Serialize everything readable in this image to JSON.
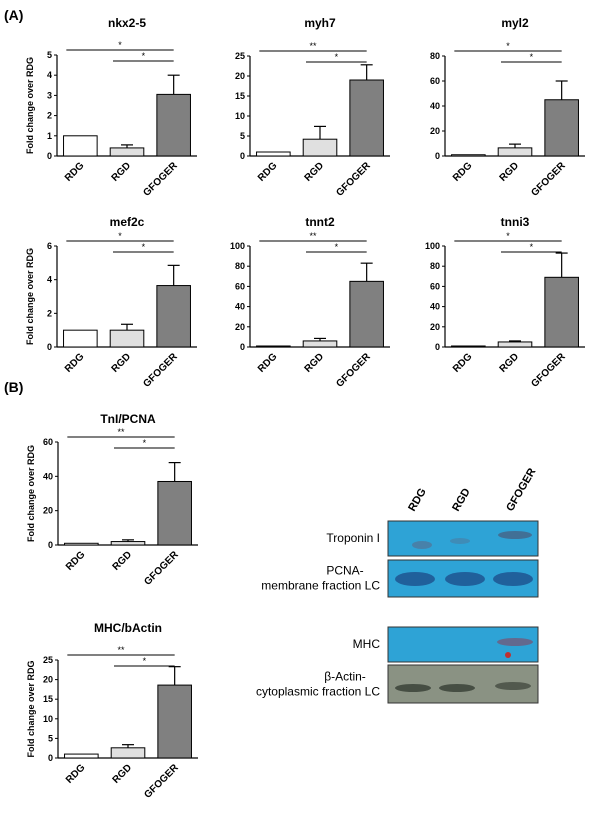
{
  "panels": [
    "(A)",
    "(B)"
  ],
  "chart_data": [
    {
      "type": "bar",
      "title": "nkx2-5",
      "ylabel": "Fold change over RDG",
      "categories": [
        "RDG",
        "RGD",
        "GFOGER"
      ],
      "values": [
        1,
        0.4,
        3.05
      ],
      "errors": [
        null,
        0.15,
        0.95
      ],
      "colors": [
        "#ffffff",
        "#e0e0e0",
        "#808080"
      ],
      "ylim": [
        0,
        5
      ],
      "yticks": [
        0,
        1,
        2,
        3,
        4,
        5
      ],
      "significance": [
        "*",
        "*"
      ]
    },
    {
      "type": "bar",
      "title": "myh7",
      "categories": [
        "RDG",
        "RGD",
        "GFOGER"
      ],
      "values": [
        1,
        4.2,
        19
      ],
      "errors": [
        null,
        3.2,
        3.8
      ],
      "colors": [
        "#ffffff",
        "#e0e0e0",
        "#808080"
      ],
      "ylim": [
        0,
        25
      ],
      "yticks": [
        0,
        5,
        10,
        15,
        20,
        25
      ],
      "significance": [
        "**",
        "*"
      ]
    },
    {
      "type": "bar",
      "title": "myl2",
      "categories": [
        "RDG",
        "RGD",
        "GFOGER"
      ],
      "values": [
        1,
        6.5,
        45
      ],
      "errors": [
        null,
        3,
        15
      ],
      "colors": [
        "#ffffff",
        "#e0e0e0",
        "#808080"
      ],
      "ylim": [
        0,
        80
      ],
      "yticks": [
        0,
        20,
        40,
        60,
        80
      ],
      "significance": [
        "*",
        "*"
      ]
    },
    {
      "type": "bar",
      "title": "mef2c",
      "ylabel": "Fold change over RDG",
      "categories": [
        "RDG",
        "RGD",
        "GFOGER"
      ],
      "values": [
        1,
        1,
        3.65
      ],
      "errors": [
        null,
        0.35,
        1.2
      ],
      "colors": [
        "#ffffff",
        "#e0e0e0",
        "#808080"
      ],
      "ylim": [
        0,
        6
      ],
      "yticks": [
        0,
        2,
        4,
        6
      ],
      "significance": [
        "*",
        "*"
      ]
    },
    {
      "type": "bar",
      "title": "tnnt2",
      "categories": [
        "RDG",
        "RGD",
        "GFOGER"
      ],
      "values": [
        1,
        6,
        65
      ],
      "errors": [
        null,
        2.5,
        18
      ],
      "colors": [
        "#ffffff",
        "#e0e0e0",
        "#808080"
      ],
      "ylim": [
        0,
        100
      ],
      "yticks": [
        0,
        20,
        40,
        60,
        80,
        100
      ],
      "significance": [
        "**",
        "*"
      ]
    },
    {
      "type": "bar",
      "title": "tnni3",
      "categories": [
        "RDG",
        "RGD",
        "GFOGER"
      ],
      "values": [
        1,
        5,
        69
      ],
      "errors": [
        null,
        1,
        24
      ],
      "colors": [
        "#ffffff",
        "#e0e0e0",
        "#808080"
      ],
      "ylim": [
        0,
        100
      ],
      "yticks": [
        0,
        20,
        40,
        60,
        80,
        100
      ],
      "significance": [
        "*",
        "*"
      ]
    },
    {
      "type": "bar",
      "title": "TnI/PCNA",
      "ylabel": "Fold change over RDG",
      "categories": [
        "RDG",
        "RGD",
        "GFOGER"
      ],
      "values": [
        1,
        2,
        37
      ],
      "errors": [
        null,
        1,
        11
      ],
      "colors": [
        "#ffffff",
        "#e0e0e0",
        "#808080"
      ],
      "ylim": [
        0,
        60
      ],
      "yticks": [
        0,
        20,
        40,
        60
      ],
      "significance": [
        "**",
        "*"
      ]
    },
    {
      "type": "bar",
      "title": "MHC/bActin",
      "ylabel": "Fold change over RDG",
      "categories": [
        "RDG",
        "RGD",
        "GFOGER"
      ],
      "values": [
        1,
        2.6,
        18.6
      ],
      "errors": [
        null,
        0.8,
        4.7
      ],
      "colors": [
        "#ffffff",
        "#e0e0e0",
        "#808080"
      ],
      "ylim": [
        0,
        25
      ],
      "yticks": [
        0,
        5,
        10,
        15,
        20,
        25
      ],
      "significance": [
        "**",
        "*"
      ]
    }
  ],
  "blot": {
    "lanes": [
      "RDG",
      "RGD",
      "GFOGER"
    ],
    "rows": [
      [
        "Troponin I"
      ],
      [
        "PCNA-",
        "membrane fraction LC"
      ],
      [
        "MHC"
      ],
      [
        "β-Actin-",
        "cytoplasmic fraction LC"
      ]
    ]
  }
}
